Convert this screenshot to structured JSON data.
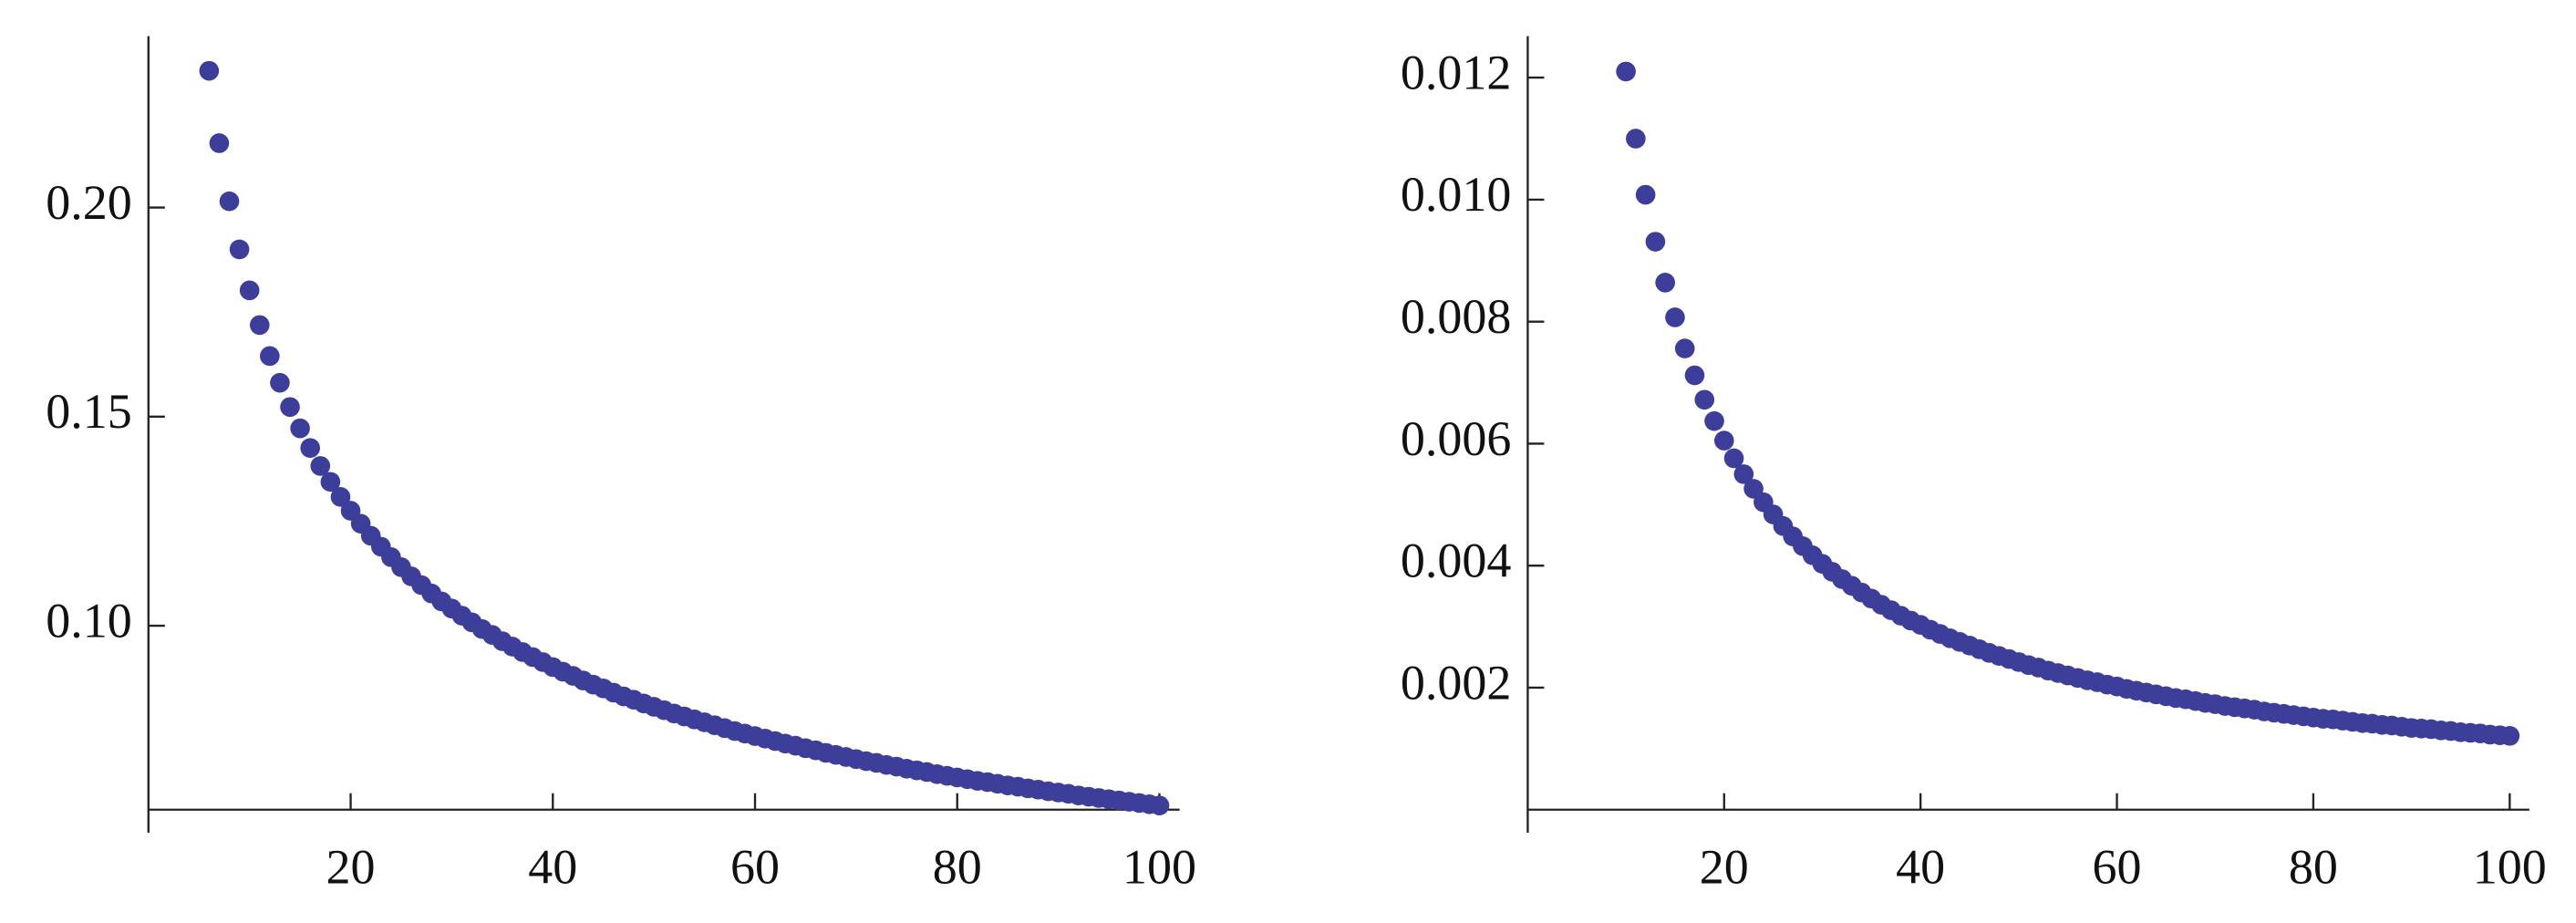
{
  "chart_data": [
    {
      "type": "scatter",
      "color": "#3d3d9a",
      "x": [
        6,
        7,
        8,
        9,
        10,
        11,
        12,
        13,
        14,
        15,
        16,
        17,
        18,
        19,
        20,
        21,
        22,
        23,
        24,
        25,
        26,
        27,
        28,
        29,
        30,
        31,
        32,
        33,
        34,
        35,
        36,
        37,
        38,
        39,
        40,
        41,
        42,
        43,
        44,
        45,
        46,
        47,
        48,
        49,
        50,
        51,
        52,
        53,
        54,
        55,
        56,
        57,
        58,
        59,
        60,
        61,
        62,
        63,
        64,
        65,
        66,
        67,
        68,
        69,
        70,
        71,
        72,
        73,
        74,
        75,
        76,
        77,
        78,
        79,
        80,
        81,
        82,
        83,
        84,
        85,
        86,
        87,
        88,
        89,
        90,
        91,
        92,
        93,
        94,
        95,
        96,
        97,
        98,
        99,
        100
      ],
      "values": [
        0.2327,
        0.2154,
        0.2015,
        0.19,
        0.1802,
        0.1719,
        0.1645,
        0.1581,
        0.1523,
        0.1472,
        0.1425,
        0.1382,
        0.1344,
        0.1308,
        0.1275,
        0.1244,
        0.1215,
        0.1189,
        0.1164,
        0.114,
        0.1118,
        0.1097,
        0.1077,
        0.1058,
        0.1041,
        0.1024,
        0.1008,
        0.0992,
        0.0978,
        0.0963,
        0.095,
        0.0937,
        0.0925,
        0.0913,
        0.0901,
        0.089,
        0.088,
        0.0869,
        0.0859,
        0.085,
        0.084,
        0.0831,
        0.0823,
        0.0814,
        0.0806,
        0.0798,
        0.079,
        0.0783,
        0.0776,
        0.0769,
        0.0762,
        0.0755,
        0.0748,
        0.0742,
        0.0736,
        0.073,
        0.0724,
        0.0718,
        0.0713,
        0.0707,
        0.0702,
        0.0696,
        0.0691,
        0.0686,
        0.0681,
        0.0676,
        0.0672,
        0.0667,
        0.0663,
        0.0658,
        0.0654,
        0.065,
        0.0645,
        0.0641,
        0.0637,
        0.0633,
        0.0629,
        0.0626,
        0.0622,
        0.0618,
        0.0615,
        0.0611,
        0.0608,
        0.0604,
        0.0601,
        0.0598,
        0.0594,
        0.0591,
        0.0588,
        0.0585,
        0.0582,
        0.0579,
        0.0576,
        0.0573,
        0.057
      ],
      "xlim": [
        0,
        102
      ],
      "ylim": [
        0.056,
        0.241
      ],
      "xticks": [
        20,
        40,
        60,
        80,
        100
      ],
      "yticks": [
        {
          "value": 0.1,
          "label": "0.10"
        },
        0.15,
        {
          "value": 0.2,
          "label": "0.20"
        }
      ]
    },
    {
      "type": "scatter",
      "color": "#3d3d9a",
      "x": [
        10,
        11,
        12,
        13,
        14,
        15,
        16,
        17,
        18,
        19,
        20,
        21,
        22,
        23,
        24,
        25,
        26,
        27,
        28,
        29,
        30,
        31,
        32,
        33,
        34,
        35,
        36,
        37,
        38,
        39,
        40,
        41,
        42,
        43,
        44,
        45,
        46,
        47,
        48,
        49,
        50,
        51,
        52,
        53,
        54,
        55,
        56,
        57,
        58,
        59,
        60,
        61,
        62,
        63,
        64,
        65,
        66,
        67,
        68,
        69,
        70,
        71,
        72,
        73,
        74,
        75,
        76,
        77,
        78,
        79,
        80,
        81,
        82,
        83,
        84,
        85,
        86,
        87,
        88,
        89,
        90,
        91,
        92,
        93,
        94,
        95,
        96,
        97,
        98,
        99,
        100
      ],
      "values": [
        0.0121,
        0.011,
        0.01008,
        0.00931,
        0.00864,
        0.00807,
        0.00756,
        0.00712,
        0.00672,
        0.00637,
        0.00605,
        0.00576,
        0.0055,
        0.00526,
        0.00504,
        0.00484,
        0.00465,
        0.00448,
        0.00432,
        0.00417,
        0.00403,
        0.0039,
        0.00378,
        0.00367,
        0.00356,
        0.00346,
        0.00336,
        0.00327,
        0.00318,
        0.0031,
        0.00303,
        0.00295,
        0.00288,
        0.00281,
        0.00275,
        0.00269,
        0.00263,
        0.00257,
        0.00252,
        0.00247,
        0.00242,
        0.00237,
        0.00233,
        0.00228,
        0.00224,
        0.0022,
        0.00216,
        0.00212,
        0.00209,
        0.00205,
        0.00202,
        0.00198,
        0.00195,
        0.00192,
        0.00189,
        0.00186,
        0.00183,
        0.00181,
        0.00178,
        0.00175,
        0.00173,
        0.0017,
        0.00168,
        0.00166,
        0.00164,
        0.00161,
        0.00159,
        0.00157,
        0.00155,
        0.00153,
        0.00151,
        0.00149,
        0.00148,
        0.00146,
        0.00144,
        0.00142,
        0.00141,
        0.00139,
        0.00138,
        0.00136,
        0.00134,
        0.00133,
        0.00132,
        0.0013,
        0.00129,
        0.00127,
        0.00126,
        0.00125,
        0.00123,
        0.00122,
        0.00121
      ],
      "xlim": [
        0,
        102
      ],
      "ylim": [
        0,
        0.01268
      ],
      "xticks": [
        20,
        40,
        60,
        80,
        100
      ],
      "yticks": [
        0.002,
        0.004,
        0.006,
        0.008,
        {
          "value": 0.01,
          "label": "0.010"
        },
        0.012
      ]
    }
  ]
}
